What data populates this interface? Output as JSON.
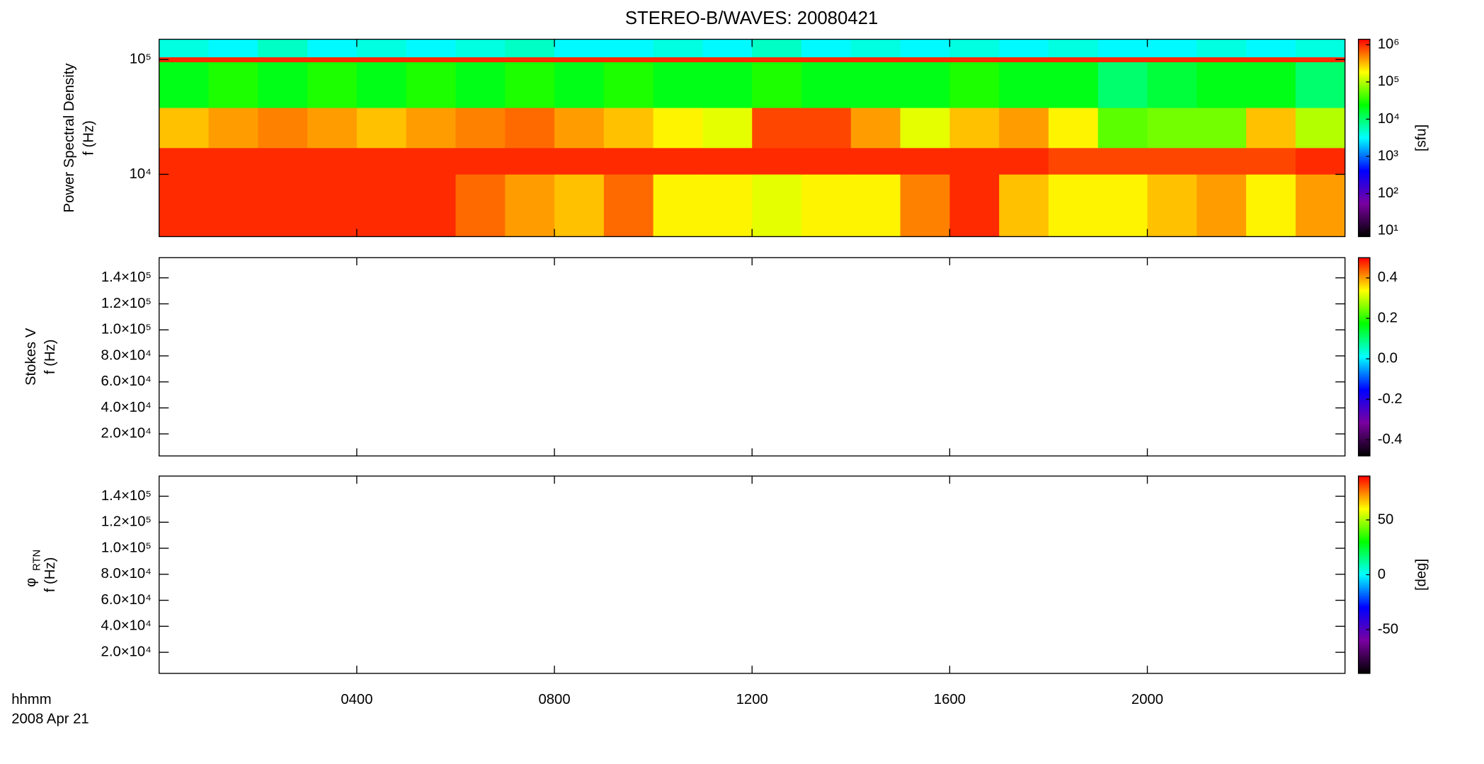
{
  "chart_data": [
    {
      "type": "heatmap",
      "title": "STEREO-B/WAVES: 20080421",
      "ylabel": [
        "Power Spectral Density",
        "f (Hz)"
      ],
      "ylog": true,
      "ylim": [
        2870,
        150000
      ],
      "yticks": [
        {
          "value": 10000,
          "label": "10⁴"
        },
        {
          "value": 100000,
          "label": "10⁵"
        }
      ],
      "x_edges": [
        0,
        1,
        2,
        3,
        4,
        5,
        6,
        7,
        8,
        9,
        10,
        11,
        12,
        13,
        14,
        15,
        16,
        17,
        18,
        19,
        20,
        21,
        22,
        23,
        24
      ],
      "y_edges": [
        2870,
        10000,
        17000,
        38000,
        95000,
        105000,
        150000
      ],
      "z": [
        [
          1000000.0,
          1000000.0,
          1000000.0,
          1000000.0,
          1000000.0,
          1000000.0,
          600000.0,
          400000.0,
          300000.0,
          600000.0,
          200000.0,
          200000.0,
          150000.0,
          200000.0,
          200000.0,
          500000.0,
          1000000.0,
          300000.0,
          200000.0,
          200000.0,
          300000.0,
          400000.0,
          200000.0,
          400000.0
        ],
        [
          1000000.0,
          1000000.0,
          1000000.0,
          1000000.0,
          1000000.0,
          1000000.0,
          1000000.0,
          1000000.0,
          1000000.0,
          1000000.0,
          1000000.0,
          1000000.0,
          1000000.0,
          1000000.0,
          1000000.0,
          1000000.0,
          1000000.0,
          1000000.0,
          800000.0,
          800000.0,
          800000.0,
          800000.0,
          800000.0,
          1000000.0
        ],
        [
          300000.0,
          400000.0,
          500000.0,
          400000.0,
          300000.0,
          400000.0,
          500000.0,
          600000.0,
          400000.0,
          300000.0,
          200000.0,
          150000.0,
          800000.0,
          800000.0,
          400000.0,
          150000.0,
          300000.0,
          400000.0,
          200000.0,
          50000.0,
          60000.0,
          60000.0,
          300000.0,
          100000.0
        ],
        [
          20000.0,
          30000.0,
          20000.0,
          30000.0,
          20000.0,
          30000.0,
          20000.0,
          30000.0,
          20000.0,
          30000.0,
          20000.0,
          20000.0,
          30000.0,
          20000.0,
          20000.0,
          20000.0,
          30000.0,
          20000.0,
          20000.0,
          10000.0,
          15000.0,
          20000.0,
          20000.0,
          10000.0
        ],
        [
          1000000.0,
          1000000.0,
          1000000.0,
          1000000.0,
          1000000.0,
          1000000.0,
          1000000.0,
          1000000.0,
          1000000.0,
          1000000.0,
          1000000.0,
          1000000.0,
          1000000.0,
          1000000.0,
          1000000.0,
          1000000.0,
          1000000.0,
          1000000.0,
          1000000.0,
          1000000.0,
          1000000.0,
          1000000.0,
          1000000.0,
          1000000.0
        ],
        [
          4000.0,
          3000.0,
          5000.0,
          3000.0,
          4000.0,
          3000.0,
          4000.0,
          5000.0,
          3000.0,
          3000.0,
          4000.0,
          3000.0,
          5000.0,
          3000.0,
          4000.0,
          3000.0,
          4000.0,
          3000.0,
          4000.0,
          3000.0,
          3000.0,
          4000.0,
          3000.0,
          4000.0
        ]
      ],
      "colorbar": {
        "log": true,
        "lim": [
          7,
          1400000
        ],
        "label": "[sfu]",
        "colormap": [
          "#000000",
          "#7a00a0",
          "#0000ff",
          "#00ffff",
          "#00ff00",
          "#ffff00",
          "#ff0000"
        ],
        "ticks": [
          {
            "value": 10,
            "label": "10¹"
          },
          {
            "value": 100,
            "label": "10²"
          },
          {
            "value": 1000,
            "label": "10³"
          },
          {
            "value": 10000,
            "label": "10⁴"
          },
          {
            "value": 100000,
            "label": "10⁵"
          },
          {
            "value": 1000000,
            "label": "10⁶"
          }
        ]
      }
    },
    {
      "type": "heatmap",
      "ylabel": [
        "Stokes V",
        "f (Hz)"
      ],
      "ylog": false,
      "ylim": [
        3060,
        155500
      ],
      "yticks": [
        {
          "value": 20000,
          "label": "2.0×10⁴"
        },
        {
          "value": 40000,
          "label": "4.0×10⁴"
        },
        {
          "value": 60000,
          "label": "6.0×10⁴"
        },
        {
          "value": 80000,
          "label": "8.0×10⁴"
        },
        {
          "value": 100000,
          "label": "1.0×10⁵"
        },
        {
          "value": 120000,
          "label": "1.2×10⁵"
        },
        {
          "value": 140000,
          "label": "1.4×10⁵"
        }
      ],
      "colorbar": {
        "log": false,
        "lim": [
          -0.48,
          0.5
        ],
        "colormap": [
          "#000000",
          "#7a00a0",
          "#0000ff",
          "#00ffff",
          "#00ff00",
          "#ffff00",
          "#ff0000"
        ],
        "ticks": [
          -0.4,
          -0.2,
          {
            "value": 0,
            "label": "0.0"
          },
          0.2,
          0.4
        ]
      }
    },
    {
      "type": "heatmap",
      "ylabel": [
        "φ",
        "f (Hz)"
      ],
      "ylabel_subscript": "RTN",
      "ylog": false,
      "ylim": [
        3800,
        155500
      ],
      "yticks": [
        {
          "value": 20000,
          "label": "2.0×10⁴"
        },
        {
          "value": 40000,
          "label": "4.0×10⁴"
        },
        {
          "value": 60000,
          "label": "6.0×10⁴"
        },
        {
          "value": 80000,
          "label": "8.0×10⁴"
        },
        {
          "value": 100000,
          "label": "1.0×10⁵"
        },
        {
          "value": 120000,
          "label": "1.2×10⁵"
        },
        {
          "value": 140000,
          "label": "1.4×10⁵"
        }
      ],
      "xlim": [
        0,
        24
      ],
      "xticks": [
        {
          "value": 4,
          "label": "0400"
        },
        {
          "value": 8,
          "label": "0800"
        },
        {
          "value": 12,
          "label": "1200"
        },
        {
          "value": 16,
          "label": "1600"
        },
        {
          "value": 20,
          "label": "2000"
        }
      ],
      "xlabel": [
        "hhmm",
        "2008 Apr 21"
      ],
      "colorbar": {
        "log": false,
        "lim": [
          -90,
          90
        ],
        "label": "[deg]",
        "colormap": [
          "#000000",
          "#7a00a0",
          "#0000ff",
          "#00ffff",
          "#00ff00",
          "#ffff00",
          "#ff0000"
        ],
        "ticks": [
          -50,
          0,
          50
        ]
      }
    }
  ]
}
